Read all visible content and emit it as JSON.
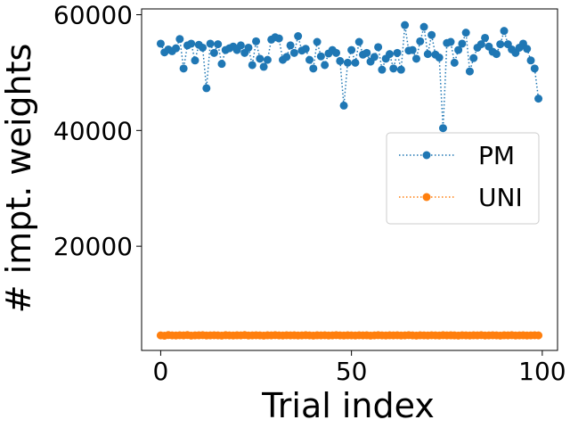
{
  "chart_data": {
    "type": "line",
    "xlabel": "Trial index",
    "ylabel": "# impt. weights",
    "xlim": [
      -5,
      104
    ],
    "ylim": [
      2000,
      61000
    ],
    "xticks": [
      0,
      50,
      100
    ],
    "xtick_labels": [
      "0",
      "50",
      "100"
    ],
    "yticks": [
      20000,
      40000,
      60000
    ],
    "ytick_labels": [
      "20000",
      "40000",
      "60000"
    ],
    "grid": false,
    "legend_position": "center-right",
    "line_style": "dotted",
    "marker": "circle",
    "series": [
      {
        "name": "PM",
        "color": "#1f77b4",
        "x": [
          0,
          1,
          2,
          3,
          4,
          5,
          6,
          7,
          8,
          9,
          10,
          11,
          12,
          13,
          14,
          15,
          16,
          17,
          18,
          19,
          20,
          21,
          22,
          23,
          24,
          25,
          26,
          27,
          28,
          29,
          30,
          31,
          32,
          33,
          34,
          35,
          36,
          37,
          38,
          39,
          40,
          41,
          42,
          43,
          44,
          45,
          46,
          47,
          48,
          49,
          50,
          51,
          52,
          53,
          54,
          55,
          56,
          57,
          58,
          59,
          60,
          61,
          62,
          63,
          64,
          65,
          66,
          67,
          68,
          69,
          70,
          71,
          72,
          73,
          74,
          75,
          76,
          77,
          78,
          79,
          80,
          81,
          82,
          83,
          84,
          85,
          86,
          87,
          88,
          89,
          90,
          91,
          92,
          93,
          94,
          95,
          96,
          97,
          98,
          99
        ],
        "values": [
          55000,
          53500,
          54000,
          53700,
          54200,
          55800,
          50700,
          54700,
          55000,
          52100,
          54800,
          54300,
          47300,
          55000,
          53400,
          54900,
          51500,
          53900,
          54200,
          54500,
          53900,
          54700,
          53400,
          54300,
          51300,
          55400,
          52400,
          51000,
          52200,
          55700,
          56100,
          55900,
          52200,
          52700,
          54700,
          53400,
          56300,
          53800,
          54100,
          52200,
          50700,
          55300,
          52800,
          51300,
          53300,
          53900,
          53400,
          52000,
          44300,
          51700,
          53900,
          51700,
          55300,
          53100,
          53400,
          51900,
          52700,
          54400,
          50500,
          52400,
          53200,
          50700,
          53400,
          50500,
          58200,
          53800,
          53900,
          52400,
          55400,
          57900,
          53200,
          56500,
          53100,
          52600,
          40400,
          55100,
          55300,
          51700,
          53900,
          55000,
          56900,
          50200,
          52500,
          54300,
          54900,
          56000,
          54500,
          53600,
          53200,
          54900,
          57200,
          54900,
          54000,
          53400,
          54300,
          55000,
          54100,
          52100,
          50700,
          45500
        ]
      },
      {
        "name": "UNI",
        "color": "#ff7f0e",
        "x": [
          0,
          1,
          2,
          3,
          4,
          5,
          6,
          7,
          8,
          9,
          10,
          11,
          12,
          13,
          14,
          15,
          16,
          17,
          18,
          19,
          20,
          21,
          22,
          23,
          24,
          25,
          26,
          27,
          28,
          29,
          30,
          31,
          32,
          33,
          34,
          35,
          36,
          37,
          38,
          39,
          40,
          41,
          42,
          43,
          44,
          45,
          46,
          47,
          48,
          49,
          50,
          51,
          52,
          53,
          54,
          55,
          56,
          57,
          58,
          59,
          60,
          61,
          62,
          63,
          64,
          65,
          66,
          67,
          68,
          69,
          70,
          71,
          72,
          73,
          74,
          75,
          76,
          77,
          78,
          79,
          80,
          81,
          82,
          83,
          84,
          85,
          86,
          87,
          88,
          89,
          90,
          91,
          92,
          93,
          94,
          95,
          96,
          97,
          98,
          99
        ],
        "values": [
          4600,
          4550,
          4650,
          4600,
          4580,
          4620,
          4600,
          4650,
          4570,
          4600,
          4610,
          4640,
          4580,
          4600,
          4620,
          4600,
          4560,
          4630,
          4600,
          4590,
          4610,
          4600,
          4650,
          4580,
          4600,
          4620,
          4600,
          4570,
          4610,
          4600,
          4640,
          4600,
          4580,
          4620,
          4600,
          4610,
          4590,
          4600,
          4630,
          4600,
          4570,
          4610,
          4600,
          4620,
          4580,
          4600,
          4640,
          4600,
          4590,
          4610,
          4600,
          4580,
          4620,
          4600,
          4610,
          4570,
          4600,
          4630,
          4600,
          4590,
          4610,
          4600,
          4620,
          4580,
          4600,
          4640,
          4600,
          4570,
          4610,
          4600,
          4590,
          4620,
          4600,
          4580,
          4630,
          4600,
          4610,
          4600,
          4570,
          4620,
          4600,
          4590,
          4610,
          4600,
          4640,
          4580,
          4600,
          4620,
          4600,
          4570,
          4610,
          4600,
          4630,
          4590,
          4600,
          4610,
          4580,
          4600,
          4620,
          4600
        ]
      }
    ]
  }
}
